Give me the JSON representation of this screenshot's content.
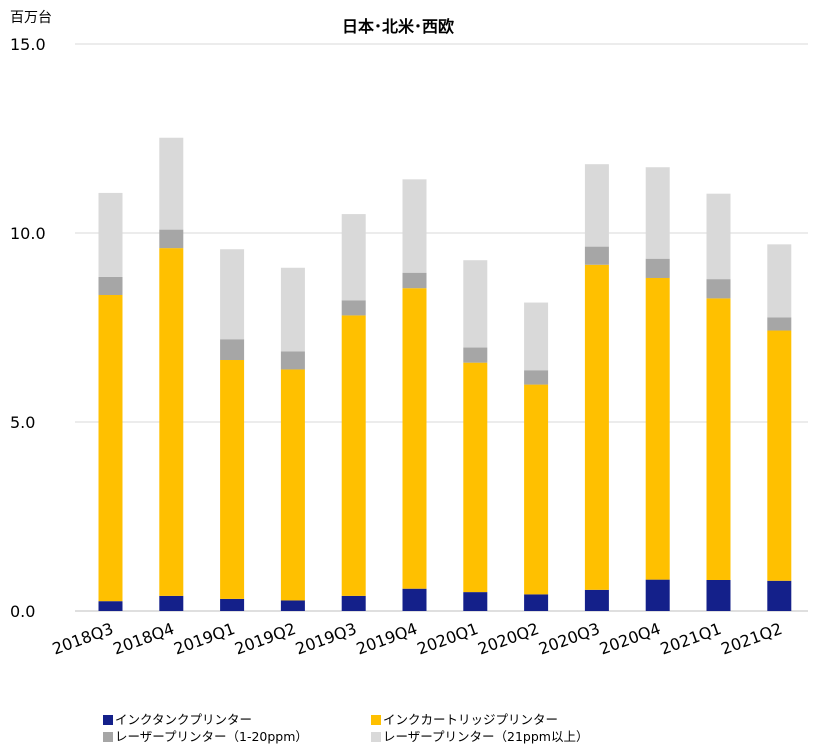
{
  "chart_data": {
    "type": "bar",
    "stacked": true,
    "title": "日本･北米･西欧",
    "ylabel": "百万台",
    "ylim": [
      0,
      15
    ],
    "yticks": [
      "0.0",
      "5.0",
      "10.0",
      "15.0"
    ],
    "grid": true,
    "legend_position": "bottom",
    "categories": [
      "2018Q3",
      "2018Q4",
      "2019Q1",
      "2019Q2",
      "2019Q3",
      "2019Q4",
      "2020Q1",
      "2020Q2",
      "2020Q3",
      "2020Q4",
      "2021Q1",
      "2021Q2"
    ],
    "series": [
      {
        "name": "インクタンクプリンター",
        "color": "#14208A",
        "values": [
          0.26,
          0.4,
          0.32,
          0.28,
          0.4,
          0.59,
          0.5,
          0.44,
          0.56,
          0.83,
          0.82,
          0.8
        ]
      },
      {
        "name": "インクカートリッジプリンター",
        "color": "#FFC000",
        "values": [
          8.1,
          9.2,
          6.32,
          6.11,
          7.42,
          7.95,
          6.07,
          5.55,
          8.6,
          7.98,
          7.45,
          6.62
        ]
      },
      {
        "name": "レーザープリンター（1-20ppm）",
        "color": "#A6A6A6",
        "values": [
          0.48,
          0.49,
          0.55,
          0.48,
          0.4,
          0.41,
          0.4,
          0.38,
          0.48,
          0.51,
          0.51,
          0.35
        ]
      },
      {
        "name": "レーザープリンター（21ppm以上）",
        "color": "#D9D9D9",
        "values": [
          2.22,
          2.43,
          2.38,
          2.21,
          2.28,
          2.47,
          2.31,
          1.79,
          2.18,
          2.42,
          2.26,
          1.93
        ]
      }
    ]
  }
}
